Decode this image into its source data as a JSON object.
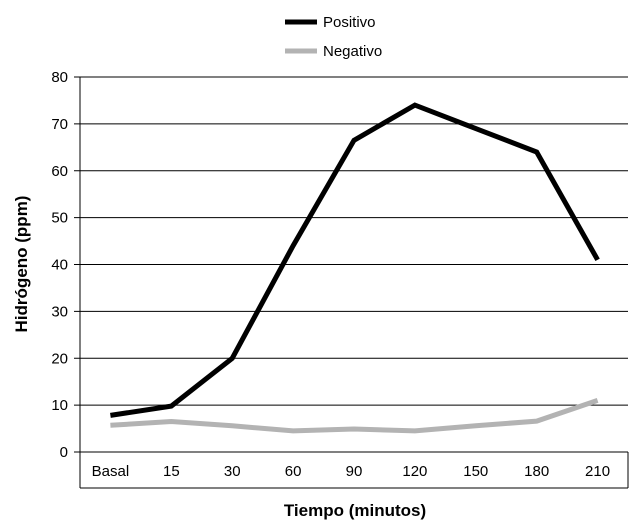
{
  "chart_data": {
    "type": "line",
    "title": "",
    "xlabel": "Tiempo (minutos)",
    "ylabel": "Hidrógeno (ppm)",
    "categories": [
      "Basal",
      "15",
      "30",
      "60",
      "90",
      "120",
      "150",
      "180",
      "210"
    ],
    "ylim": [
      0,
      80
    ],
    "yticks": [
      0,
      10,
      20,
      30,
      40,
      50,
      60,
      70,
      80
    ],
    "grid": true,
    "legend_position": "top",
    "series": [
      {
        "name": "Positivo",
        "color": "#000000",
        "values": [
          7.8,
          9.8,
          20,
          44,
          66.5,
          74,
          69,
          64,
          41
        ]
      },
      {
        "name": "Negativo",
        "color": "#b3b3b3",
        "values": [
          5.7,
          6.5,
          5.6,
          4.5,
          4.9,
          4.5,
          5.6,
          6.6,
          11
        ]
      }
    ]
  }
}
